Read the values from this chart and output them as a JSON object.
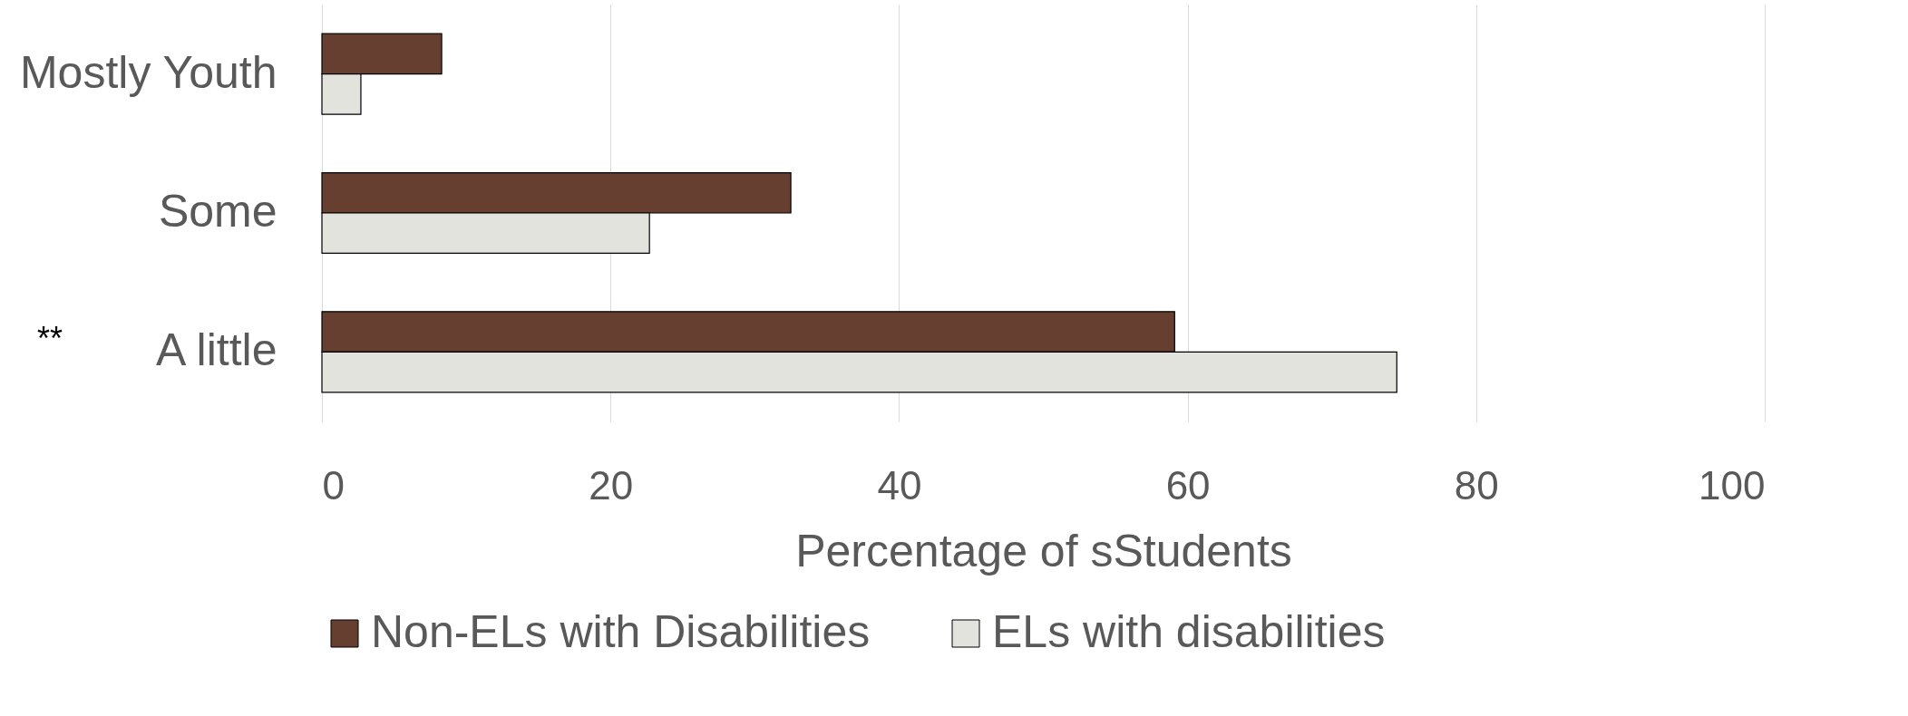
{
  "chart_data": {
    "type": "bar",
    "orientation": "horizontal",
    "xlabel": "Percentage of sStudents",
    "categories": [
      "Mostly Youth",
      "Some",
      "A little"
    ],
    "series": [
      {
        "name": "Non-ELs with Disabilities",
        "color": "#673f31",
        "values": [
          8.3,
          32.5,
          59.1
        ]
      },
      {
        "name": "ELs with disabilities",
        "color": "#e1e3dc",
        "values": [
          2.7,
          22.7,
          74.5
        ]
      }
    ],
    "xlim": [
      0,
      100
    ],
    "xticks": [
      0,
      20,
      40,
      60,
      80,
      100
    ],
    "grid": "x",
    "legend": "bottom",
    "annotations": [
      "**"
    ]
  }
}
